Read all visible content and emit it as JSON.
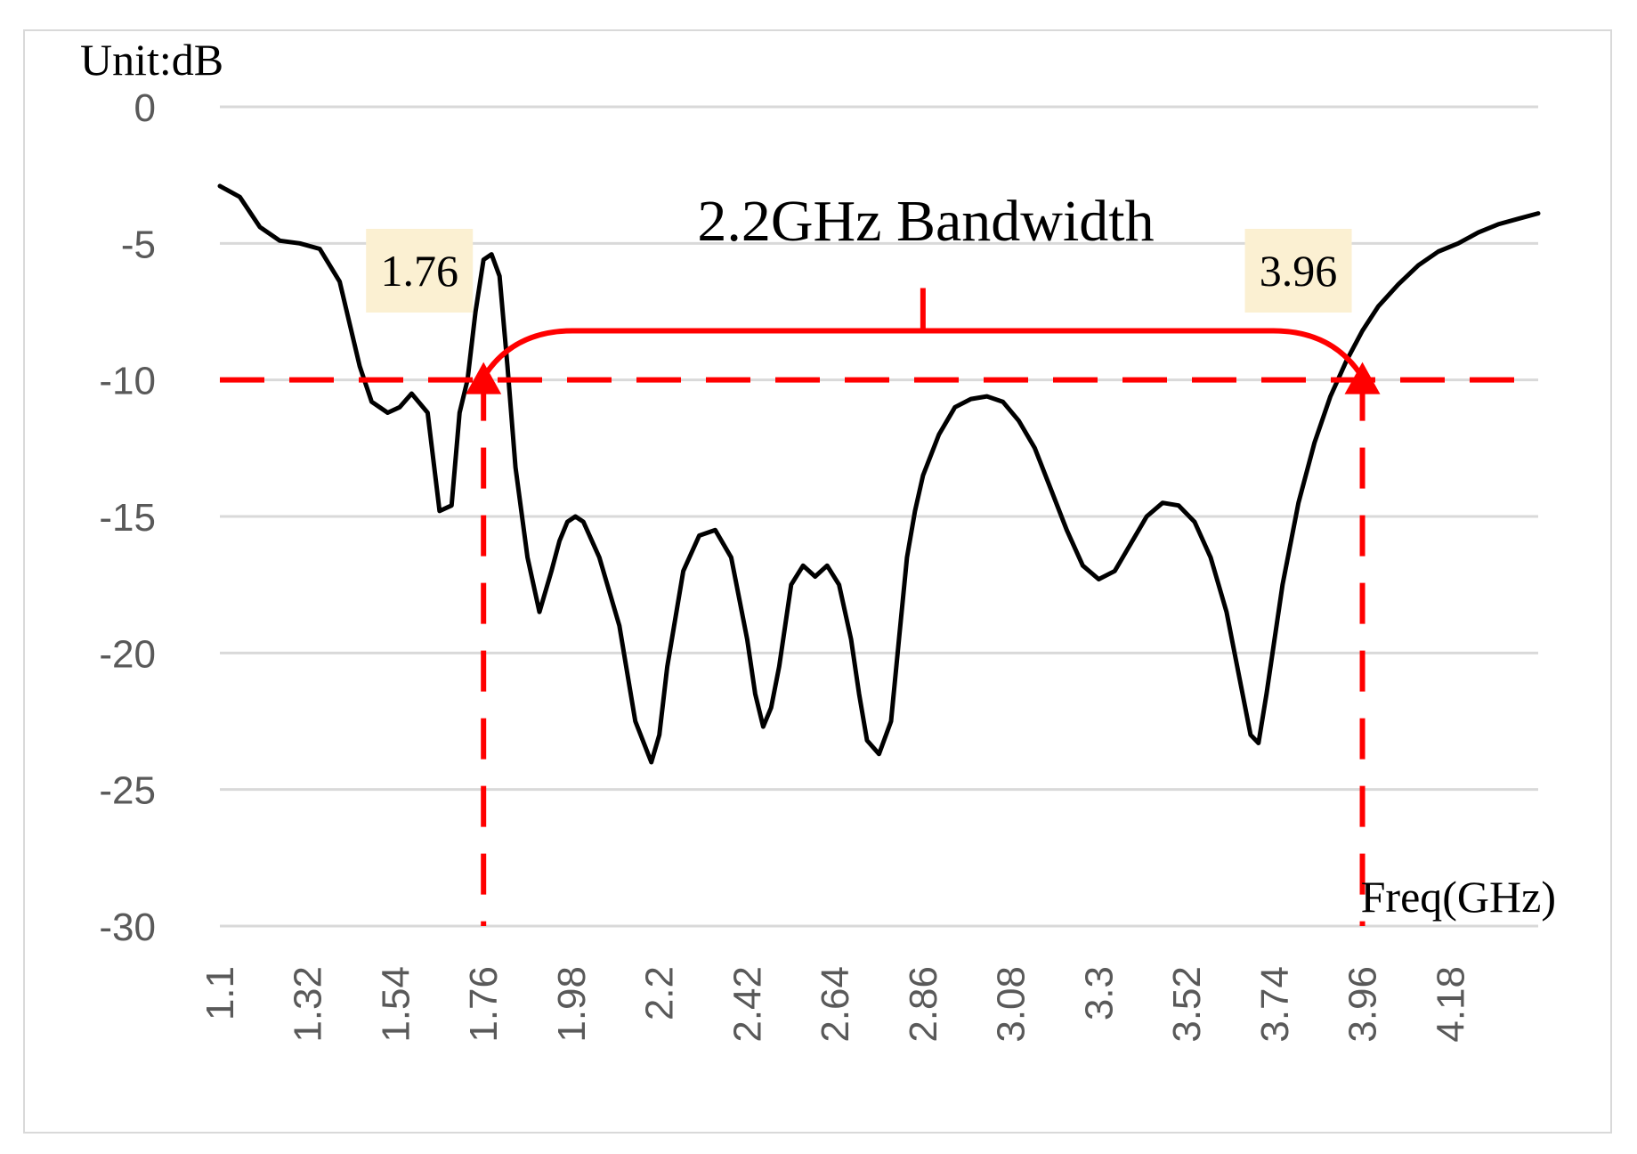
{
  "chart_data": {
    "type": "line",
    "title": "2.2GHz Bandwidth",
    "ylabel": "Unit:dB",
    "xlabel": "Freq(GHz)",
    "ylim": [
      -30,
      0
    ],
    "xlim": [
      1.1,
      4.4
    ],
    "y_ticks": [
      "0",
      "-5",
      "-10",
      "-15",
      "-20",
      "-25",
      "-30"
    ],
    "y_tick_values": [
      0,
      -5,
      -10,
      -15,
      -20,
      -25,
      -30
    ],
    "x_tick_labels": [
      "1.1",
      "1.32",
      "1.54",
      "1.76",
      "1.98",
      "2.2",
      "2.42",
      "2.64",
      "2.86",
      "3.08",
      "3.3",
      "3.52",
      "3.74",
      "3.96",
      "4.18"
    ],
    "x_tick_values": [
      1.1,
      1.32,
      1.54,
      1.76,
      1.98,
      2.2,
      2.42,
      2.64,
      2.86,
      3.08,
      3.3,
      3.52,
      3.74,
      3.96,
      4.18
    ],
    "grid": true,
    "series": [
      {
        "color": "#000000",
        "x": [
          1.1,
          1.15,
          1.2,
          1.25,
          1.3,
          1.35,
          1.4,
          1.45,
          1.48,
          1.52,
          1.55,
          1.58,
          1.62,
          1.65,
          1.68,
          1.7,
          1.72,
          1.74,
          1.76,
          1.78,
          1.8,
          1.82,
          1.84,
          1.87,
          1.9,
          1.93,
          1.95,
          1.97,
          1.99,
          2.01,
          2.05,
          2.1,
          2.14,
          2.18,
          2.2,
          2.22,
          2.26,
          2.3,
          2.34,
          2.38,
          2.42,
          2.44,
          2.46,
          2.48,
          2.5,
          2.53,
          2.56,
          2.59,
          2.62,
          2.65,
          2.68,
          2.7,
          2.72,
          2.75,
          2.78,
          2.8,
          2.82,
          2.84,
          2.86,
          2.9,
          2.94,
          2.98,
          3.02,
          3.06,
          3.1,
          3.14,
          3.18,
          3.22,
          3.26,
          3.3,
          3.34,
          3.38,
          3.42,
          3.46,
          3.5,
          3.54,
          3.58,
          3.62,
          3.66,
          3.68,
          3.7,
          3.72,
          3.74,
          3.76,
          3.8,
          3.84,
          3.88,
          3.92,
          3.96,
          4.0,
          4.05,
          4.1,
          4.15,
          4.2,
          4.25,
          4.3,
          4.35,
          4.4
        ],
        "values": [
          -2.9,
          -3.3,
          -4.4,
          -4.9,
          -5.0,
          -5.2,
          -6.4,
          -9.5,
          -10.8,
          -11.2,
          -11.0,
          -10.5,
          -11.2,
          -14.8,
          -14.6,
          -11.2,
          -10.0,
          -7.5,
          -5.6,
          -5.4,
          -6.2,
          -9.5,
          -13.2,
          -16.5,
          -18.5,
          -17.0,
          -15.9,
          -15.2,
          -15.0,
          -15.2,
          -16.5,
          -19.0,
          -22.5,
          -24.0,
          -23.0,
          -20.5,
          -17.0,
          -15.7,
          -15.5,
          -16.5,
          -19.5,
          -21.5,
          -22.7,
          -22.0,
          -20.5,
          -17.5,
          -16.8,
          -17.2,
          -16.8,
          -17.5,
          -19.5,
          -21.5,
          -23.2,
          -23.7,
          -22.5,
          -19.5,
          -16.5,
          -14.8,
          -13.5,
          -12.0,
          -11.0,
          -10.7,
          -10.6,
          -10.8,
          -11.5,
          -12.5,
          -14.0,
          -15.5,
          -16.8,
          -17.3,
          -17.0,
          -16.0,
          -15.0,
          -14.5,
          -14.6,
          -15.2,
          -16.5,
          -18.5,
          -21.5,
          -23.0,
          -23.3,
          -21.5,
          -19.5,
          -17.5,
          -14.5,
          -12.3,
          -10.6,
          -9.3,
          -8.2,
          -7.3,
          -6.5,
          -5.8,
          -5.3,
          -5.0,
          -4.6,
          -4.3,
          -4.1,
          -3.9
        ]
      }
    ],
    "reference_line": {
      "y": -10,
      "color": "#ff0000",
      "style": "dashed"
    },
    "markers": [
      {
        "x": 1.76,
        "label": "1.76",
        "color": "#ff0000"
      },
      {
        "x": 3.96,
        "label": "3.96",
        "color": "#ff0000"
      }
    ],
    "bandwidth_bracket": {
      "from": 1.76,
      "to": 3.96,
      "y": -8.2,
      "color": "#ff0000"
    },
    "label_box_color": "#fbf0d2"
  }
}
